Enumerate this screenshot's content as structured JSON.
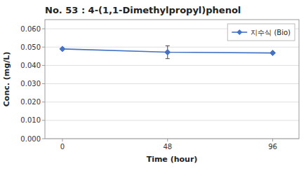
{
  "chart_data": {
    "type": "line",
    "title": "No. 53 : 4-(1,1-Dimethylpropyl)phenol",
    "xlabel": "Time (hour)",
    "ylabel": "Conc. (mg/L)",
    "x": [
      0,
      48,
      96
    ],
    "series": [
      {
        "name": "지수식 (Bio)",
        "color": "#4472C4",
        "marker": "diamond",
        "values": [
          0.049,
          0.0472,
          0.0468
        ],
        "yerr": [
          0.0,
          0.0035,
          0.0
        ]
      }
    ],
    "xlim": [
      -8,
      108
    ],
    "ylim": [
      0.0,
      0.065
    ],
    "xticks": [
      0,
      48,
      96
    ],
    "yticks": [
      {
        "value": 0.0,
        "label": "0.000"
      },
      {
        "value": 0.01,
        "label": "0.010"
      },
      {
        "value": 0.02,
        "label": "0.020"
      },
      {
        "value": 0.03,
        "label": "0.030"
      },
      {
        "value": 0.04,
        "label": "0.040"
      },
      {
        "value": 0.05,
        "label": "0.050"
      },
      {
        "value": 0.06,
        "label": "0.060"
      }
    ],
    "grid": "y",
    "legend": "upper right"
  }
}
